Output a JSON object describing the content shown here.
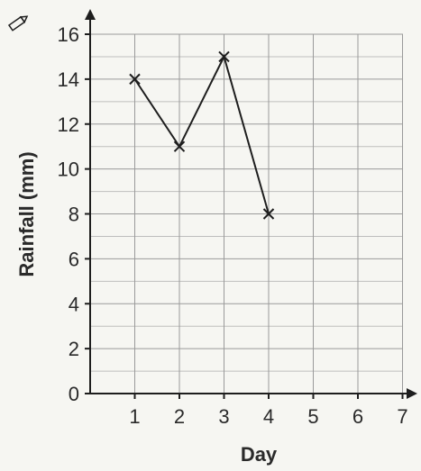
{
  "chart_data": {
    "type": "line",
    "title": "",
    "xlabel": "Day",
    "ylabel": "Rainfall (mm)",
    "xlim": [
      0,
      7
    ],
    "ylim": [
      0,
      16
    ],
    "x_ticks": [
      "1",
      "2",
      "3",
      "4",
      "5",
      "6",
      "7"
    ],
    "y_ticks": [
      "0",
      "2",
      "4",
      "6",
      "8",
      "10",
      "12",
      "14",
      "16"
    ],
    "grid": true,
    "marker": "x",
    "series": [
      {
        "x": [
          1,
          2,
          3,
          4
        ],
        "values": [
          14,
          11,
          15,
          8
        ]
      }
    ],
    "colors": {
      "line": "#1e1e1e",
      "grid": "#9a9a9a",
      "background": "#f6f6f2"
    }
  },
  "icons": {
    "corner": "pencil-icon"
  }
}
